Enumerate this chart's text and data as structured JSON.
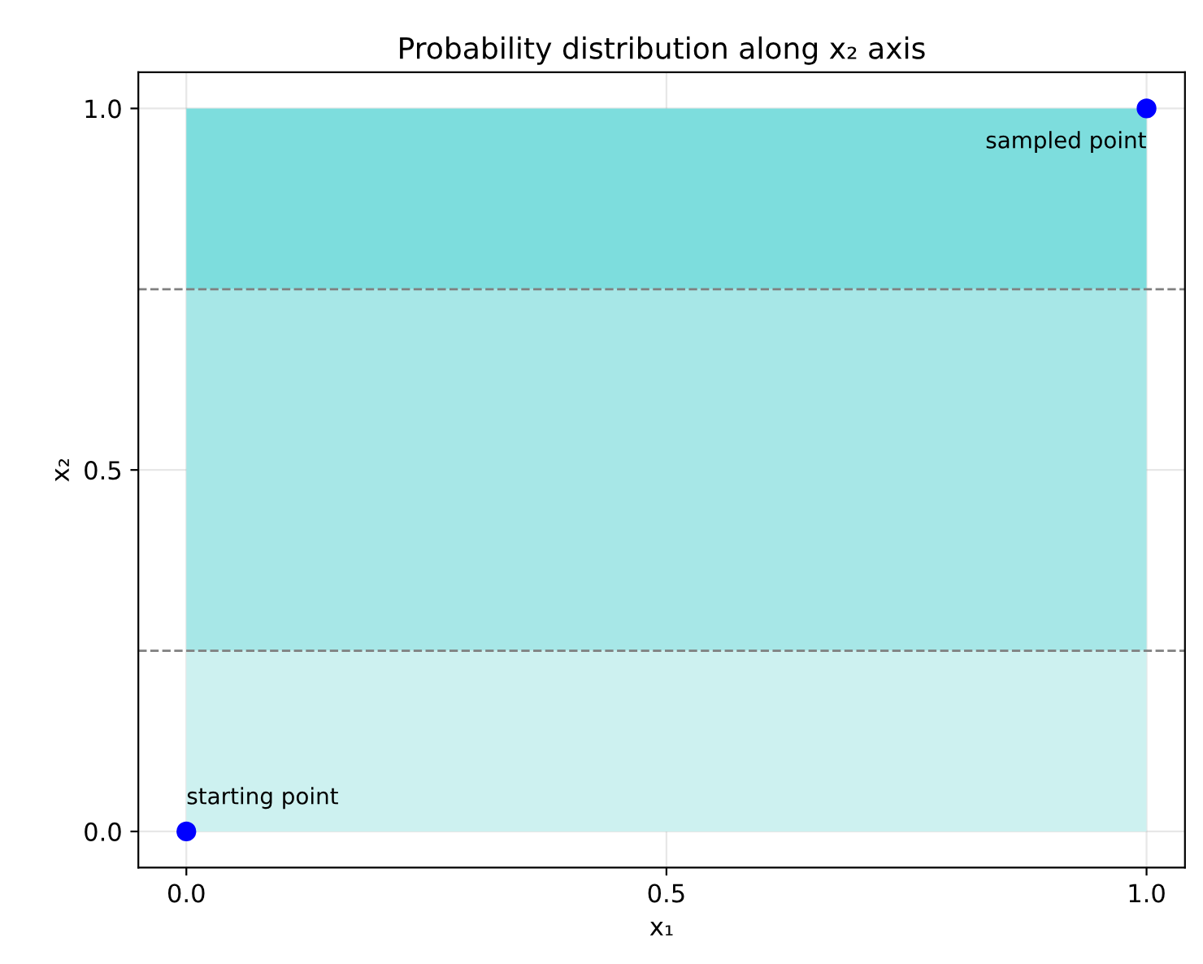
{
  "chart_data": {
    "type": "scatter",
    "title": "Probability distribution along x₂ axis",
    "xlabel": "x₁",
    "ylabel": "x₂",
    "x": [
      0,
      1
    ],
    "series": [
      {
        "color": "#0000ff",
        "values": [
          0,
          1
        ]
      }
    ],
    "marker": "circle",
    "annotations": [
      {
        "text": "starting point",
        "x": 0,
        "y": 0
      },
      {
        "text": "sampled point",
        "x": 1,
        "y": 1
      }
    ],
    "bands": [
      {
        "axis": "y",
        "from": 0,
        "to": 0.25,
        "color": "#cdf1f0"
      },
      {
        "axis": "y",
        "from": 0.25,
        "to": 0.75,
        "color": "#a7e7e7"
      },
      {
        "axis": "y",
        "from": 0.75,
        "to": 1,
        "color": "#7ddddd"
      }
    ],
    "ref_lines": [
      {
        "axis": "y",
        "value": 0.25,
        "color": "#808080",
        "line_style": "dashed"
      },
      {
        "axis": "y",
        "value": 0.75,
        "color": "#808080",
        "line_style": "dashed"
      }
    ],
    "xlim": [
      -0.05,
      1.04
    ],
    "ylim": [
      -0.05,
      1.05
    ],
    "xticks": [
      {
        "value": 0,
        "label": "0.0"
      },
      {
        "value": 0.5,
        "label": "0.5"
      },
      {
        "value": 1,
        "label": "1.0"
      }
    ],
    "yticks": [
      {
        "value": 0,
        "label": "0.0"
      },
      {
        "value": 0.5,
        "label": "0.5"
      },
      {
        "value": 1,
        "label": "1.0"
      }
    ],
    "grid": true
  }
}
